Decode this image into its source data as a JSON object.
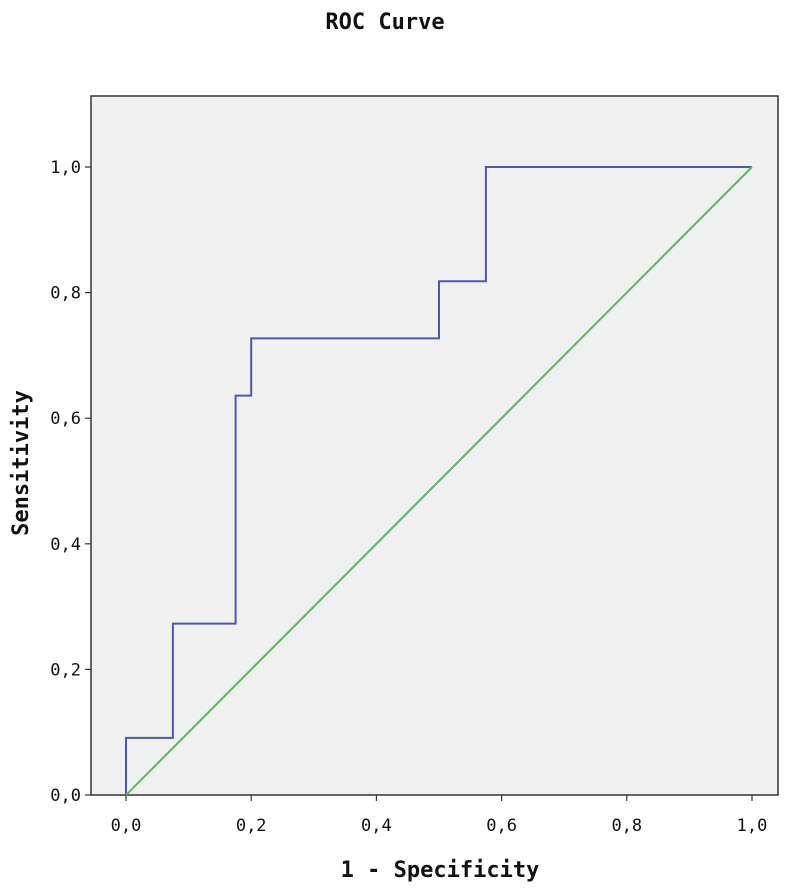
{
  "chart_data": {
    "type": "line",
    "title": "ROC Curve",
    "xlabel": "1 - Specificity",
    "ylabel": "Sensitivity",
    "xlim": [
      -0.05,
      1.05
    ],
    "ylim": [
      0.0,
      1.1
    ],
    "x_ticks": [
      0.0,
      0.2,
      0.4,
      0.6,
      0.8,
      1.0
    ],
    "x_tick_labels": [
      "0,0",
      "0,2",
      "0,4",
      "0,6",
      "0,8",
      "1,0"
    ],
    "y_ticks": [
      0.0,
      0.2,
      0.4,
      0.6,
      0.8,
      1.0
    ],
    "y_tick_labels": [
      "0,0",
      "0,2",
      "0,4",
      "0,6",
      "0,8",
      "1,0"
    ],
    "grid": false,
    "plot_background": "#f0f0f0",
    "series": [
      {
        "kind": "roc-curve",
        "color": "#4a5aa8",
        "x": [
          0.0,
          0.0,
          0.075,
          0.075,
          0.175,
          0.175,
          0.2,
          0.2,
          0.5,
          0.5,
          0.575,
          0.575,
          1.0
        ],
        "y": [
          0.0,
          0.091,
          0.091,
          0.273,
          0.273,
          0.636,
          0.636,
          0.727,
          0.727,
          0.818,
          0.818,
          1.0,
          1.0
        ]
      },
      {
        "kind": "reference-line",
        "color": "#5cb85c",
        "x": [
          0.0,
          1.0
        ],
        "y": [
          0.0,
          1.0
        ]
      }
    ]
  }
}
